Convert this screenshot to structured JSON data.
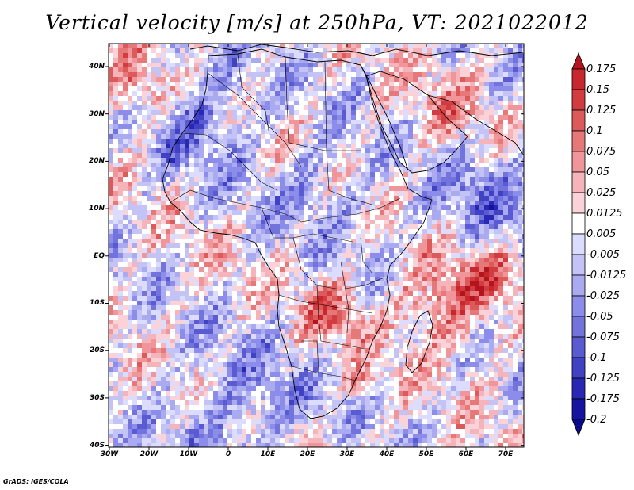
{
  "title": "Vertical velocity [m/s] at 250hPa, VT: 2021022012",
  "footer": "GrADS: IGES/COLA",
  "map": {
    "lat_labels": [
      "40N",
      "30N",
      "20N",
      "10N",
      "EQ",
      "10S",
      "20S",
      "30S",
      "40S"
    ],
    "lon_labels": [
      "30W",
      "20W",
      "10W",
      "0",
      "10E",
      "20E",
      "30E",
      "40E",
      "50E",
      "60E",
      "70E"
    ],
    "lat_range": [
      -40,
      45
    ],
    "lon_range": [
      -30,
      75
    ]
  },
  "colorbar": {
    "levels": [
      "0.175",
      "0.15",
      "0.125",
      "0.1",
      "0.075",
      "0.05",
      "0.025",
      "0.0125",
      "0.005",
      "-0.005",
      "-0.0125",
      "-0.025",
      "-0.05",
      "-0.075",
      "-0.1",
      "-0.125",
      "-0.175",
      "-0.2"
    ],
    "colors": [
      "#b4141e",
      "#c8282d",
      "#d23c41",
      "#dc5a5a",
      "#e6787a",
      "#f0969b",
      "#f5b4b9",
      "#fad2d7",
      "#ffffff",
      "#dcdcff",
      "#c3c3f5",
      "#aaaaf0",
      "#8c8ceb",
      "#7373dc",
      "#5a5ad2",
      "#4141c3",
      "#2828b4",
      "#1414a0",
      "#0a0a8c"
    ]
  }
}
